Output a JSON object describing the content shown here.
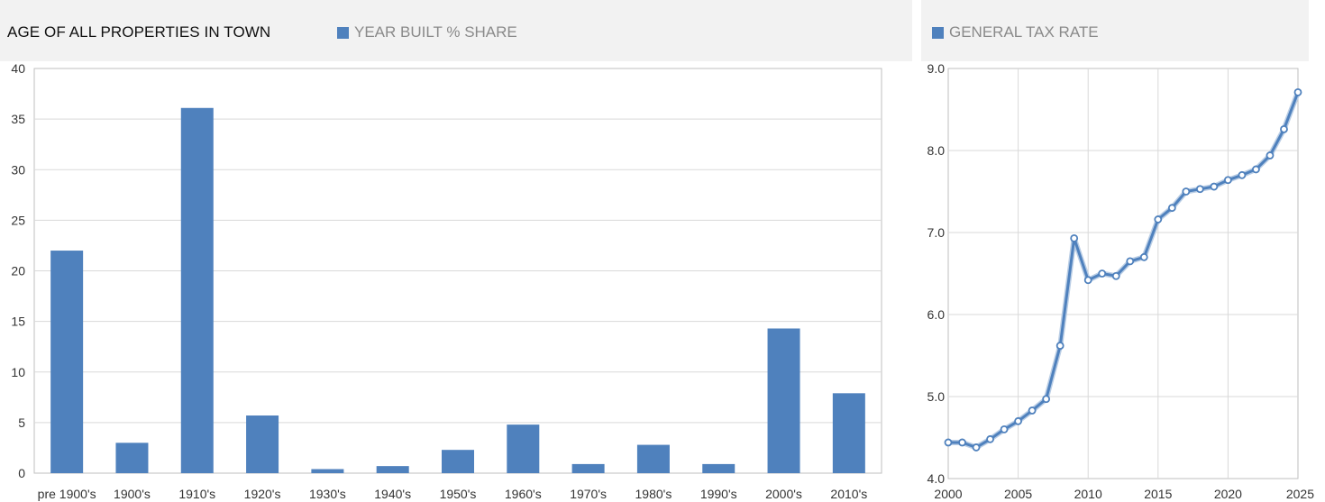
{
  "charts": {
    "left": {
      "title": "AGE OF ALL PROPERTIES IN TOWN",
      "legend": "YEAR BUILT % SHARE"
    },
    "right": {
      "legend": "GENERAL TAX RATE"
    }
  },
  "colors": {
    "series": "#4f81bd",
    "grid": "#d9d9d9",
    "header_bg": "#f2f2f2"
  },
  "chart_data": [
    {
      "type": "bar",
      "title": "AGE OF ALL PROPERTIES IN TOWN",
      "categories": [
        "pre 1900's",
        "1900's",
        "1910's",
        "1920's",
        "1930's",
        "1940's",
        "1950's",
        "1960's",
        "1970's",
        "1980's",
        "1990's",
        "2000's",
        "2010's"
      ],
      "series": [
        {
          "name": "YEAR BUILT % SHARE",
          "values": [
            22,
            3,
            36.1,
            5.7,
            0.4,
            0.7,
            2.3,
            4.8,
            0.9,
            2.8,
            0.9,
            14.3,
            7.9
          ]
        }
      ],
      "yticks": [
        "0",
        "5",
        "10",
        "15",
        "20",
        "25",
        "30",
        "35",
        "40"
      ],
      "ylim": [
        0,
        40
      ],
      "grid": true,
      "legend_position": "top"
    },
    {
      "type": "line",
      "series": [
        {
          "name": "GENERAL TAX RATE",
          "x": [
            2000,
            2001,
            2002,
            2003,
            2004,
            2005,
            2006,
            2007,
            2008,
            2009,
            2010,
            2011,
            2012,
            2013,
            2014,
            2015,
            2016,
            2017,
            2018,
            2019,
            2020,
            2021,
            2022,
            2023,
            2024,
            2025
          ],
          "values": [
            4.44,
            4.44,
            4.38,
            4.48,
            4.6,
            4.7,
            4.83,
            4.97,
            5.62,
            6.93,
            6.42,
            6.5,
            6.47,
            6.65,
            6.7,
            7.16,
            7.3,
            7.5,
            7.53,
            7.56,
            7.64,
            7.7,
            7.77,
            7.94,
            8.26,
            8.71
          ]
        }
      ],
      "xticks": [
        "2000",
        "2005",
        "2010",
        "2015",
        "2020",
        "2025"
      ],
      "yticks": [
        "4.0",
        "5.0",
        "6.0",
        "7.0",
        "8.0",
        "9.0"
      ],
      "xlim": [
        2000,
        2025
      ],
      "ylim": [
        4.0,
        9.0
      ],
      "grid": true,
      "legend_position": "top"
    }
  ]
}
